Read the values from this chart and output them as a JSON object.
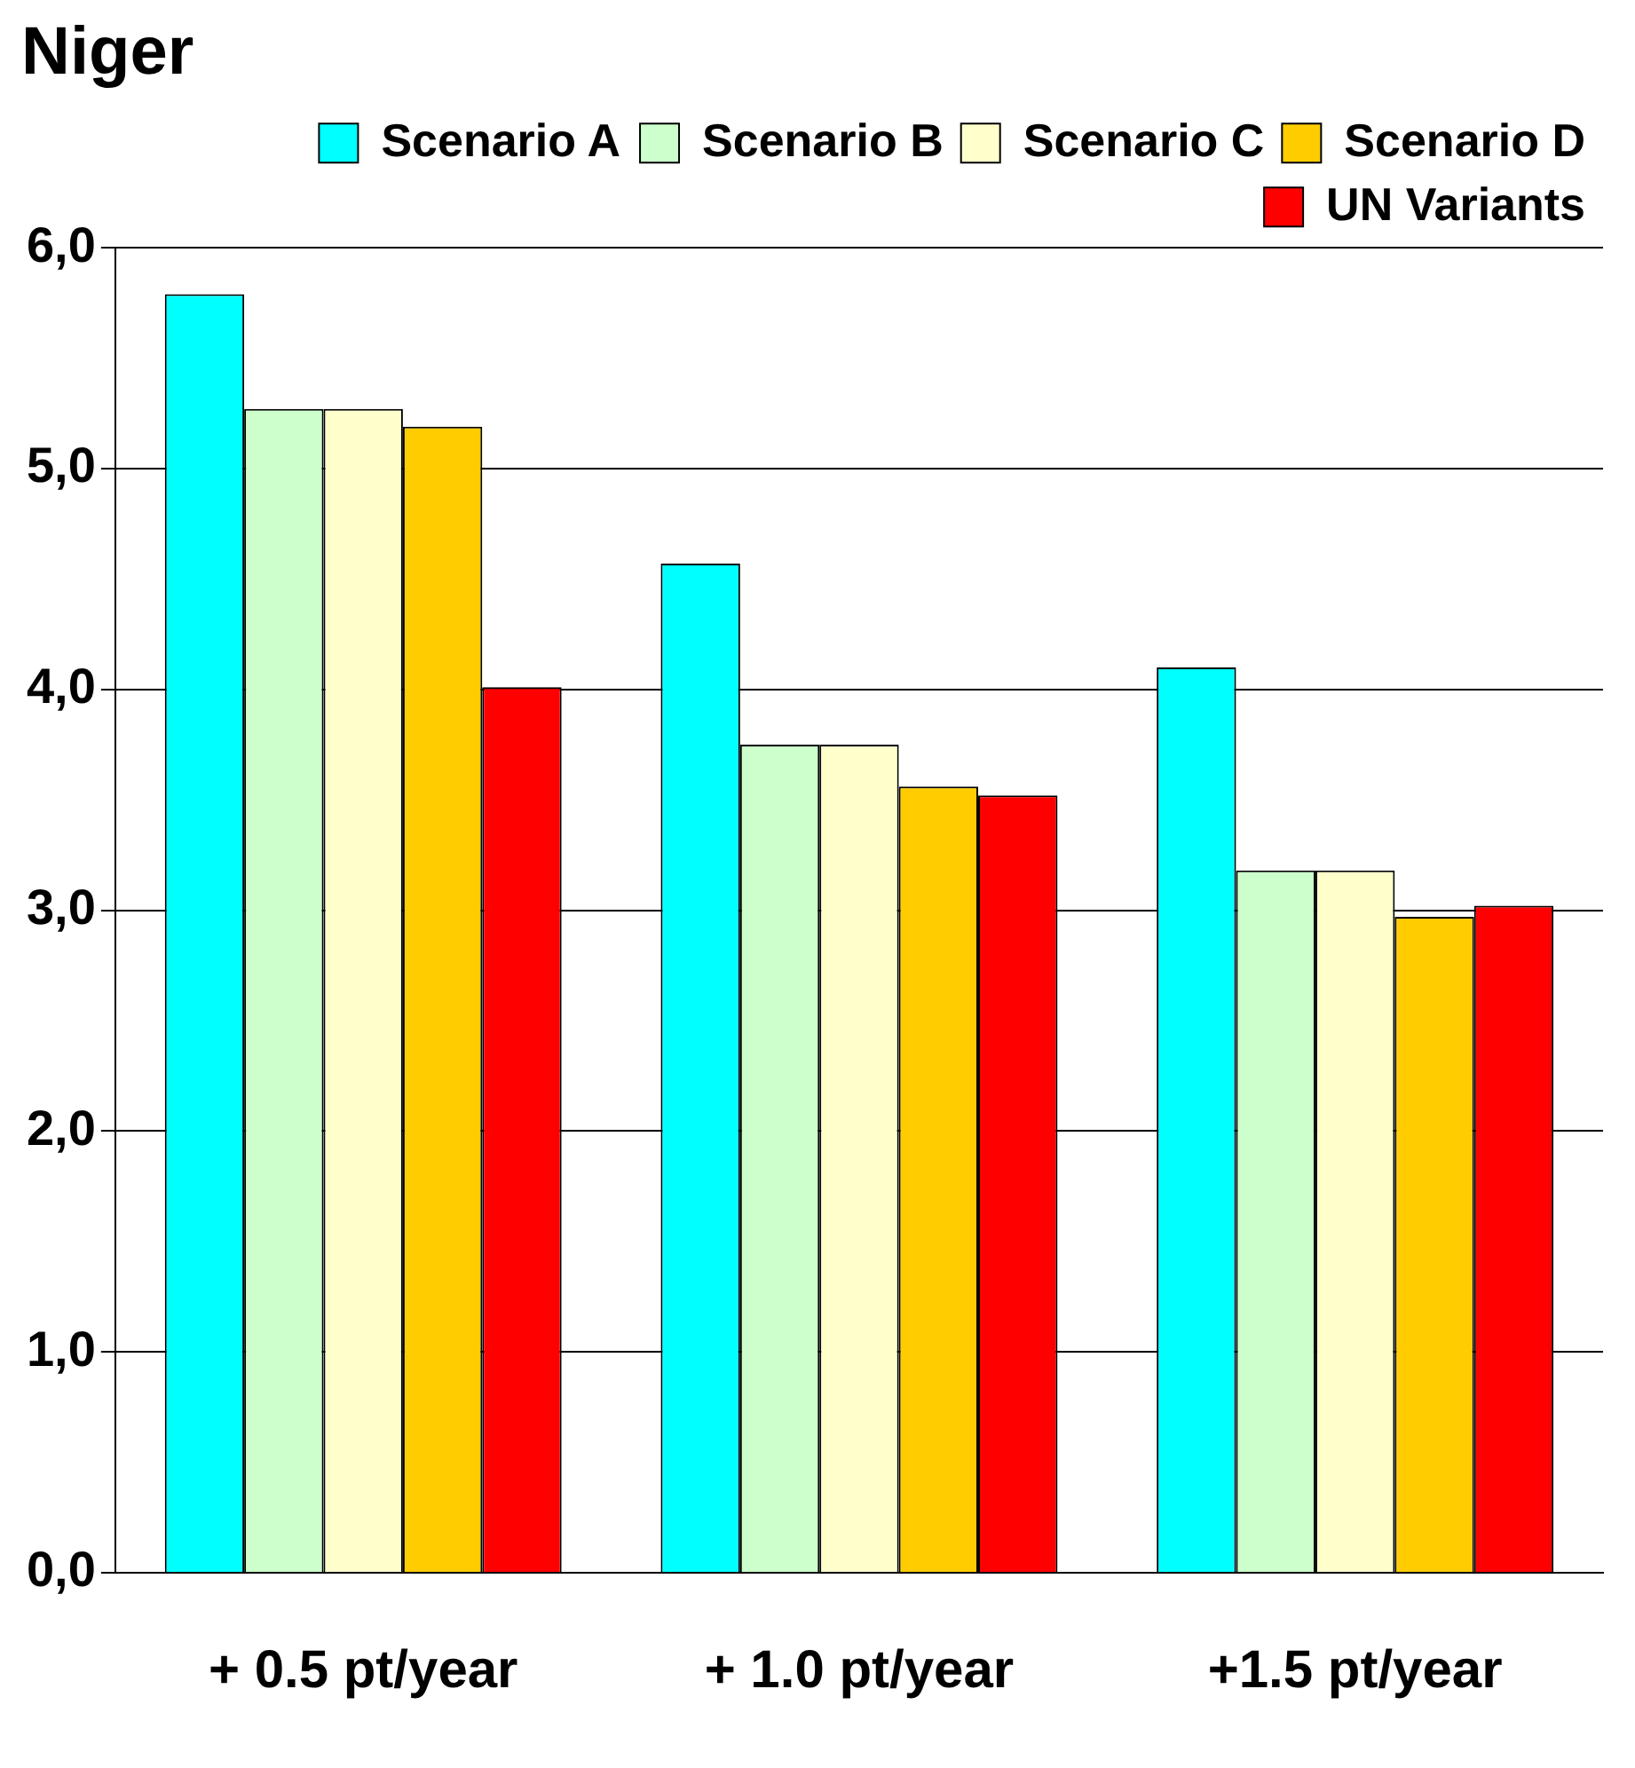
{
  "chart_data": {
    "type": "bar",
    "title": "Niger",
    "categories": [
      "+ 0.5 pt/year",
      "+ 1.0 pt/year",
      "+1.5 pt/year"
    ],
    "series": [
      {
        "name": "Scenario A",
        "color": "#00ffff",
        "values": [
          5.79,
          4.57,
          4.1
        ]
      },
      {
        "name": "Scenario B",
        "color": "#ccffcc",
        "values": [
          5.27,
          3.75,
          3.18
        ]
      },
      {
        "name": "Scenario C",
        "color": "#ffffcc",
        "values": [
          5.27,
          3.75,
          3.18
        ]
      },
      {
        "name": "Scenario D",
        "color": "#ffcc00",
        "values": [
          5.19,
          3.56,
          2.97
        ]
      },
      {
        "name": "UN Variants",
        "color": "#ff0000",
        "values": [
          4.01,
          3.52,
          3.02
        ]
      }
    ],
    "ylim": [
      0,
      6
    ],
    "yticks": [
      {
        "value": 0,
        "label": "0,0"
      },
      {
        "value": 1,
        "label": "1,0"
      },
      {
        "value": 2,
        "label": "2,0"
      },
      {
        "value": 3,
        "label": "3,0"
      },
      {
        "value": 4,
        "label": "4,0"
      },
      {
        "value": 5,
        "label": "5,0"
      },
      {
        "value": 6,
        "label": "6,0"
      }
    ],
    "grid": "y",
    "legend": "top right"
  }
}
